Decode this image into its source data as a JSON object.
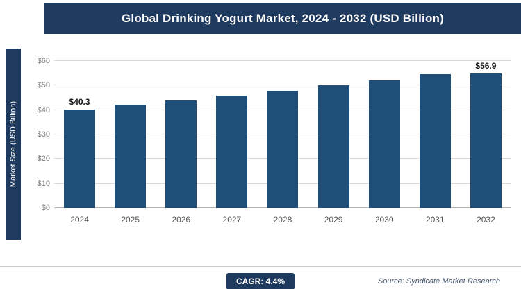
{
  "header": {
    "title": "Global Drinking Yogurt Market, 2024 - 2032 (USD Billion)"
  },
  "chart_data": {
    "type": "bar",
    "title": "Global Drinking Yogurt Market, 2024 - 2032 (USD Billion)",
    "categories": [
      "2024",
      "2025",
      "2026",
      "2027",
      "2028",
      "2029",
      "2030",
      "2031",
      "2032"
    ],
    "values": [
      40.3,
      42.1,
      43.9,
      45.9,
      47.9,
      50.0,
      52.2,
      54.5,
      56.9
    ],
    "bar_labels": [
      "$40.3",
      "",
      "",
      "",
      "",
      "",
      "",
      "",
      "$56.9"
    ],
    "xlabel": "",
    "ylabel": "Market Size (USD Billion)",
    "ylim": [
      0,
      60
    ],
    "ytick_step": 10,
    "ytick_prefix": "$",
    "grid": true,
    "legend": "none",
    "bar_color": "#1f4e79"
  },
  "footer": {
    "cagr_label": "CAGR: 4.4%",
    "source": "Source: Syndicate Market Research"
  },
  "colors": {
    "accent_navy": "#1e3a5f",
    "bar_navy": "#1f4e79",
    "gridline_gray": "#d9d9d9"
  }
}
